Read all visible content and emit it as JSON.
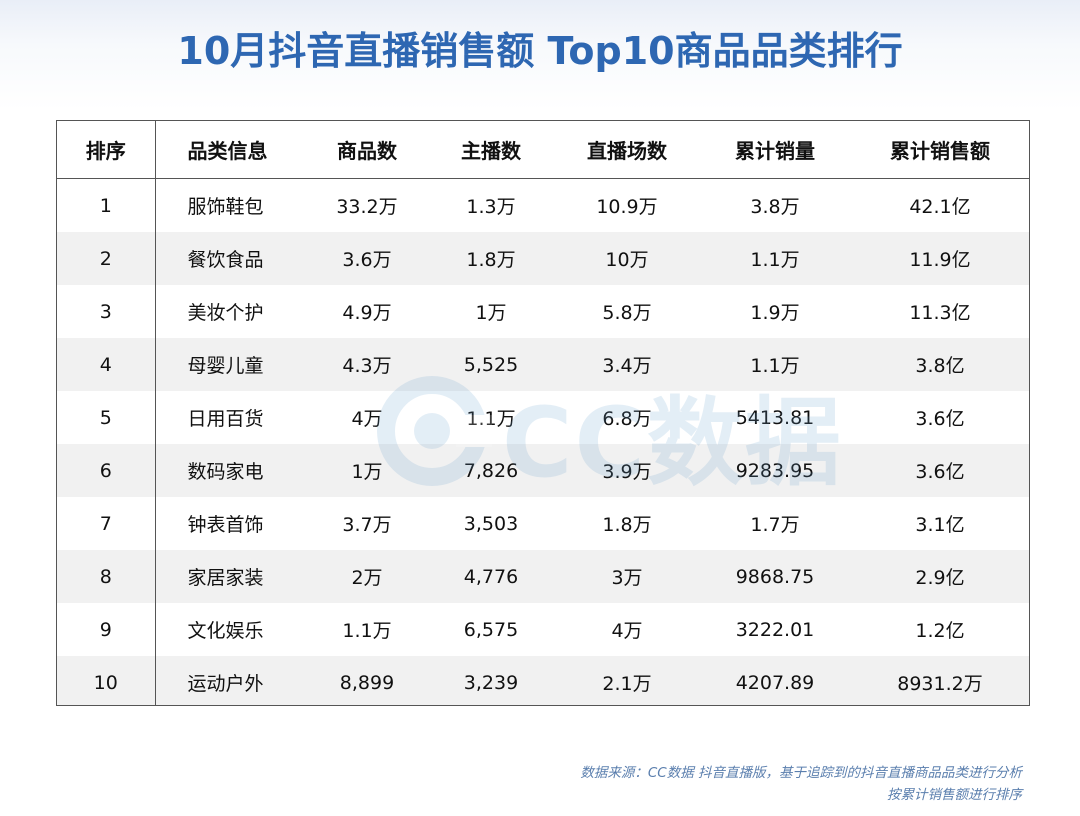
{
  "title": "10月抖音直播销售额 Top10商品品类排行",
  "watermark": {
    "text": "CC数据"
  },
  "table": {
    "headers": {
      "rank": "排序",
      "category": "品类信息",
      "products": "商品数",
      "anchors": "主播数",
      "sessions": "直播场数",
      "volume": "累计销量",
      "sales": "累计销售额"
    },
    "rows": [
      {
        "rank": "1",
        "category": "服饰鞋包",
        "products": "33.2万",
        "anchors": "1.3万",
        "sessions": "10.9万",
        "volume": "3.8万",
        "sales": "42.1亿"
      },
      {
        "rank": "2",
        "category": "餐饮食品",
        "products": "3.6万",
        "anchors": "1.8万",
        "sessions": "10万",
        "volume": "1.1万",
        "sales": "11.9亿"
      },
      {
        "rank": "3",
        "category": "美妆个护",
        "products": "4.9万",
        "anchors": "1万",
        "sessions": "5.8万",
        "volume": "1.9万",
        "sales": "11.3亿"
      },
      {
        "rank": "4",
        "category": "母婴儿童",
        "products": "4.3万",
        "anchors": "5,525",
        "sessions": "3.4万",
        "volume": "1.1万",
        "sales": "3.8亿"
      },
      {
        "rank": "5",
        "category": "日用百货",
        "products": "4万",
        "anchors": "1.1万",
        "sessions": "6.8万",
        "volume": "5413.81",
        "sales": "3.6亿"
      },
      {
        "rank": "6",
        "category": "数码家电",
        "products": "1万",
        "anchors": "7,826",
        "sessions": "3.9万",
        "volume": "9283.95",
        "sales": "3.6亿"
      },
      {
        "rank": "7",
        "category": "钟表首饰",
        "products": "3.7万",
        "anchors": "3,503",
        "sessions": "1.8万",
        "volume": "1.7万",
        "sales": "3.1亿"
      },
      {
        "rank": "8",
        "category": "家居家装",
        "products": "2万",
        "anchors": "4,776",
        "sessions": "3万",
        "volume": "9868.75",
        "sales": "2.9亿"
      },
      {
        "rank": "9",
        "category": "文化娱乐",
        "products": "1.1万",
        "anchors": "6,575",
        "sessions": "4万",
        "volume": "3222.01",
        "sales": "1.2亿"
      },
      {
        "rank": "10",
        "category": "运动户外",
        "products": "8,899",
        "anchors": "3,239",
        "sessions": "2.1万",
        "volume": "4207.89",
        "sales": "8931.2万"
      }
    ]
  },
  "footer": {
    "line1": "数据来源：CC数据 抖音直播版，基于追踪到的抖音直播商品品类进行分析",
    "line2": "按累计销售额进行排序"
  }
}
